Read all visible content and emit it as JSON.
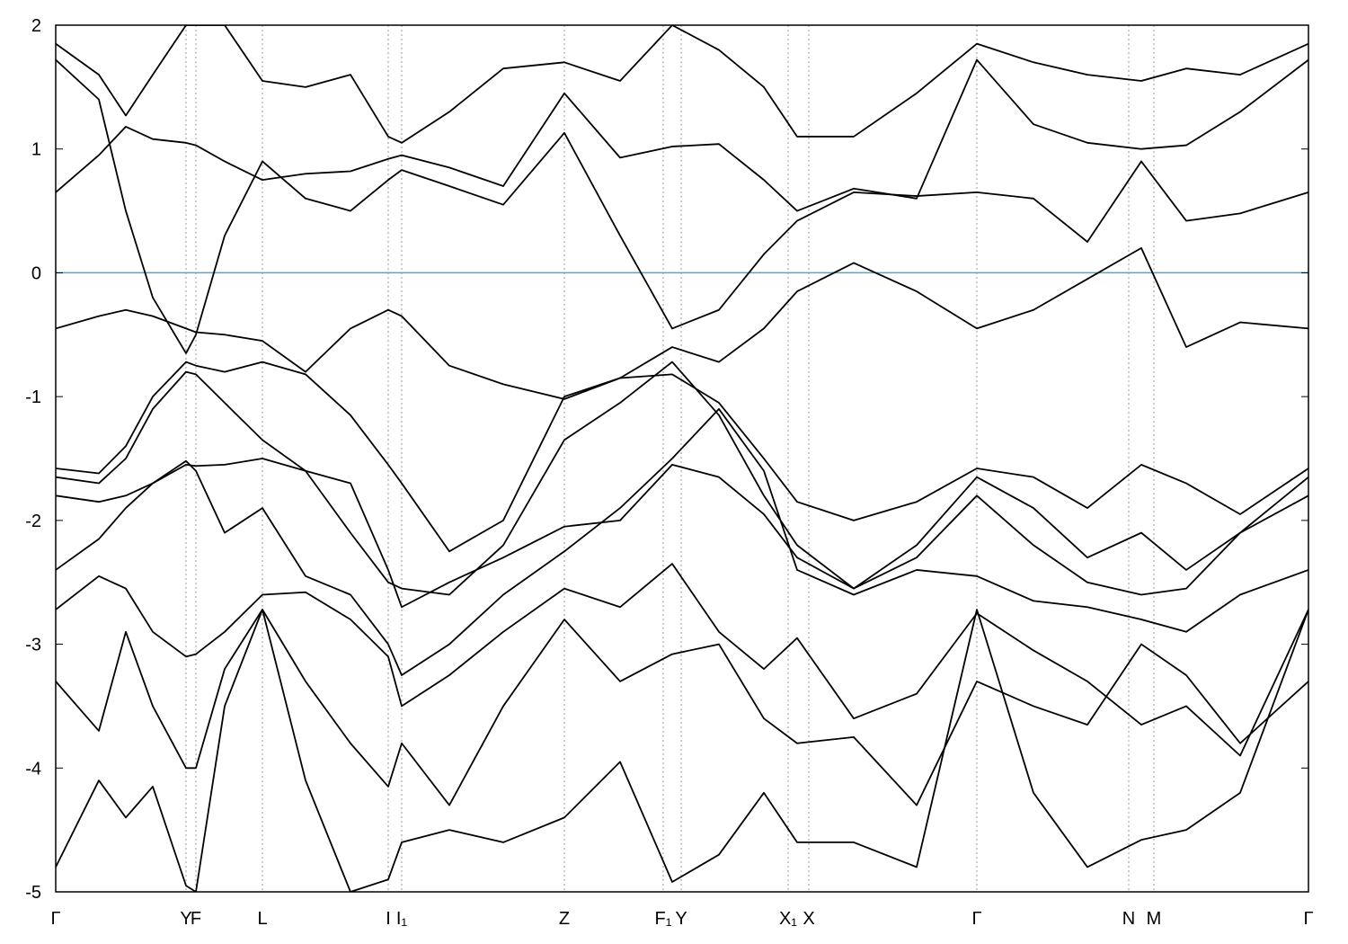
{
  "chart_data": {
    "type": "line",
    "x": [
      0,
      0.48,
      0.78,
      1.08,
      1.45,
      1.56,
      1.88,
      2.3,
      2.78,
      3.28,
      3.7,
      3.85,
      4.38,
      4.98,
      5.66,
      6.28,
      6.86,
      7.38,
      7.88,
      8.25,
      8.88,
      9.58,
      10.25,
      10.88,
      11.48,
      12.08,
      12.58,
      13.18,
      13.94
    ],
    "xlim": [
      0,
      13.94
    ],
    "xticks": [
      {
        "value": 0,
        "label": "Γ"
      },
      {
        "value": 1.45,
        "label": "Y"
      },
      {
        "value": 1.56,
        "label": "F"
      },
      {
        "value": 2.3,
        "label": "L"
      },
      {
        "value": 3.7,
        "label": "I"
      },
      {
        "value": 3.85,
        "label": "I₁"
      },
      {
        "value": 5.66,
        "label": "Z"
      },
      {
        "value": 6.76,
        "label": "F₁"
      },
      {
        "value": 6.96,
        "label": "Y"
      },
      {
        "value": 8.15,
        "label": "X₁"
      },
      {
        "value": 8.38,
        "label": "X"
      },
      {
        "value": 10.25,
        "label": "Γ"
      },
      {
        "value": 11.94,
        "label": "N"
      },
      {
        "value": 12.22,
        "label": "M"
      },
      {
        "value": 13.94,
        "label": "Γ"
      }
    ],
    "ylim": [
      -5,
      2
    ],
    "yticks": [
      -5,
      -4,
      -3,
      -2,
      -1,
      0,
      1,
      2
    ],
    "grid": true,
    "reference_line": {
      "value": 0,
      "color": "#4fa8c8"
    },
    "series": [
      {
        "color": "#000000",
        "values": [
          1.72,
          1.4,
          0.5,
          -0.2,
          -0.65,
          -0.5,
          0.3,
          0.9,
          0.6,
          0.5,
          0.75,
          0.83,
          0.7,
          0.55,
          1.13,
          0.3,
          -0.45,
          -0.3,
          0.15,
          0.42,
          0.65,
          0.62,
          0.65,
          0.6,
          0.25,
          0.9,
          0.42,
          0.48,
          0.65
        ]
      },
      {
        "color": "#000000",
        "values": [
          -0.45,
          -0.35,
          -0.3,
          -0.35,
          -0.45,
          -0.48,
          -0.5,
          -0.55,
          -0.8,
          -0.45,
          -0.3,
          -0.35,
          -0.75,
          -0.9,
          -1.02,
          -0.85,
          -0.6,
          -0.72,
          -0.45,
          -0.15,
          0.08,
          -0.15,
          -0.45,
          -0.3,
          -0.05,
          0.2,
          -0.6,
          -0.4,
          -0.45
        ]
      },
      {
        "color": "#000000",
        "values": [
          0.65,
          0.95,
          1.18,
          1.08,
          1.05,
          1.03,
          0.9,
          0.75,
          0.8,
          0.82,
          0.92,
          0.95,
          0.85,
          0.7,
          1.45,
          0.93,
          1.02,
          1.04,
          0.75,
          0.5,
          0.68,
          0.6,
          1.72,
          1.2,
          1.05,
          1.0,
          1.03,
          1.3,
          1.72
        ]
      },
      {
        "color": "#000000",
        "values": [
          1.85,
          1.6,
          1.27,
          1.6,
          2.0,
          2.0,
          2.0,
          1.55,
          1.5,
          1.6,
          1.1,
          1.05,
          1.3,
          1.65,
          1.7,
          1.55,
          2.0,
          1.8,
          1.5,
          1.1,
          1.1,
          1.45,
          1.85,
          1.7,
          1.6,
          1.55,
          1.65,
          1.6,
          1.85
        ]
      },
      {
        "color": "#000000",
        "values": [
          -1.58,
          -1.62,
          -1.4,
          -1.0,
          -0.72,
          -0.75,
          -0.8,
          -0.72,
          -0.82,
          -1.15,
          -1.55,
          -1.7,
          -2.25,
          -2.0,
          -1.0,
          -0.85,
          -0.82,
          -1.05,
          -1.5,
          -1.85,
          -2.0,
          -1.85,
          -1.58,
          -1.65,
          -1.9,
          -1.55,
          -1.7,
          -1.95,
          -1.58
        ]
      },
      {
        "color": "#000000",
        "values": [
          -1.65,
          -1.7,
          -1.5,
          -1.1,
          -0.8,
          -0.82,
          -1.05,
          -1.35,
          -1.6,
          -2.1,
          -2.5,
          -2.55,
          -2.6,
          -2.2,
          -1.35,
          -1.05,
          -0.72,
          -1.15,
          -1.8,
          -2.2,
          -2.55,
          -2.2,
          -1.65,
          -1.9,
          -2.3,
          -2.1,
          -2.4,
          -2.1,
          -1.65
        ]
      },
      {
        "color": "#000000",
        "values": [
          -1.8,
          -1.85,
          -1.8,
          -1.7,
          -1.55,
          -1.56,
          -1.55,
          -1.5,
          -1.6,
          -1.7,
          -2.4,
          -2.7,
          -2.5,
          -2.3,
          -2.05,
          -2.0,
          -1.55,
          -1.65,
          -1.95,
          -2.3,
          -2.55,
          -2.3,
          -1.8,
          -2.2,
          -2.5,
          -2.6,
          -2.55,
          -2.1,
          -1.8
        ]
      },
      {
        "color": "#000000",
        "values": [
          -2.4,
          -2.15,
          -1.9,
          -1.7,
          -1.52,
          -1.6,
          -2.1,
          -1.9,
          -2.45,
          -2.6,
          -3.0,
          -3.25,
          -3.0,
          -2.6,
          -2.25,
          -1.9,
          -1.5,
          -1.1,
          -1.6,
          -2.4,
          -2.6,
          -2.4,
          -2.45,
          -2.65,
          -2.7,
          -2.8,
          -2.9,
          -2.6,
          -2.4
        ]
      },
      {
        "color": "#000000",
        "values": [
          -2.72,
          -2.45,
          -2.55,
          -2.9,
          -3.1,
          -3.08,
          -2.9,
          -2.6,
          -2.58,
          -2.8,
          -3.1,
          -3.5,
          -3.25,
          -2.9,
          -2.55,
          -2.7,
          -2.35,
          -2.9,
          -3.2,
          -2.95,
          -3.6,
          -3.4,
          -2.75,
          -3.05,
          -3.3,
          -3.65,
          -3.5,
          -3.9,
          -2.72
        ]
      },
      {
        "color": "#000000",
        "values": [
          -3.3,
          -3.7,
          -2.9,
          -3.5,
          -4.0,
          -4.0,
          -3.2,
          -2.72,
          -3.3,
          -3.8,
          -4.15,
          -3.8,
          -4.3,
          -3.5,
          -2.8,
          -3.3,
          -3.08,
          -3.0,
          -3.6,
          -3.8,
          -3.75,
          -4.3,
          -3.3,
          -3.5,
          -3.65,
          -3.0,
          -3.25,
          -3.8,
          -3.3
        ]
      },
      {
        "color": "#000000",
        "values": [
          -4.8,
          -4.1,
          -4.4,
          -4.15,
          -4.95,
          -5.0,
          -3.5,
          -2.72,
          -4.1,
          -5.0,
          -4.9,
          -4.6,
          -4.5,
          -4.6,
          -4.4,
          -3.95,
          -4.92,
          -4.7,
          -4.2,
          -4.6,
          -4.6,
          -4.8,
          -2.72,
          -4.2,
          -4.8,
          -4.58,
          -4.5,
          -4.2,
          -2.72
        ]
      }
    ]
  }
}
